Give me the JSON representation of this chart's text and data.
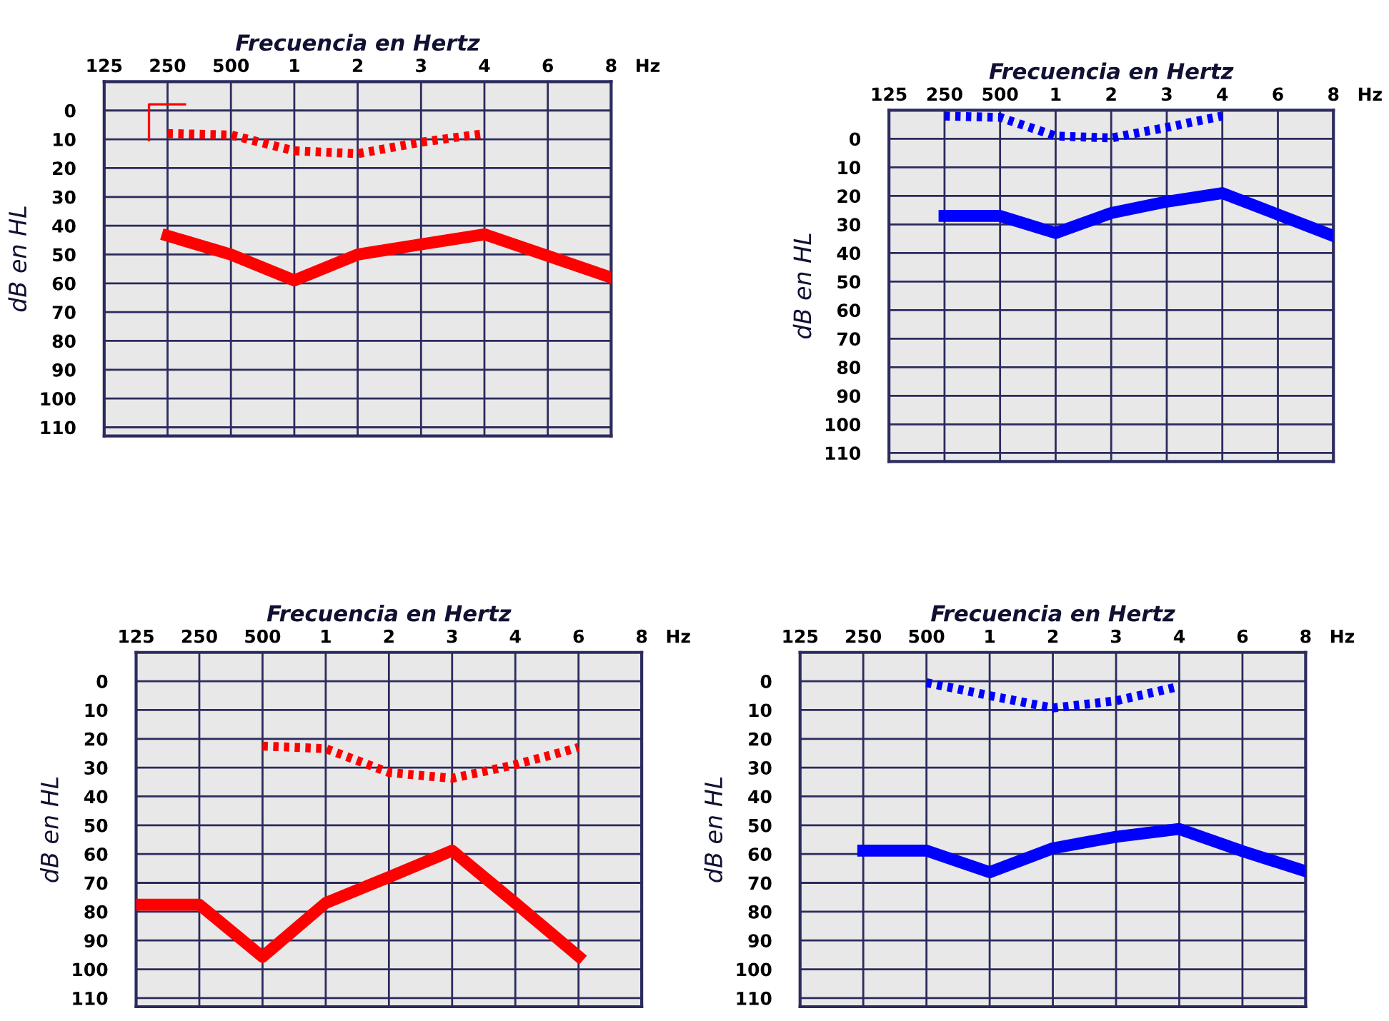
{
  "chart_data": [
    {
      "type": "line",
      "xlabel": "Frecuencia en Hertz",
      "ylabel": "dB en HL",
      "annotations": [
        "Hz"
      ],
      "ylim": [
        113,
        -10
      ],
      "categories": [
        "125",
        "250",
        "500",
        "1",
        "2",
        "3",
        "4",
        "6",
        "8"
      ],
      "yticks": [
        0,
        10,
        20,
        30,
        40,
        50,
        60,
        70,
        80,
        90,
        100,
        110
      ],
      "grid": true,
      "series": [
        {
          "color": "#ff0000",
          "line_style": "solid",
          "values": [
            null,
            43.5,
            50,
            59,
            50,
            46.5,
            43,
            50.5,
            58
          ]
        },
        {
          "color": "#ff0000",
          "line_style": "dotted",
          "values": [
            null,
            8,
            8.5,
            14,
            15,
            11,
            8,
            null,
            null
          ]
        },
        {
          "type": "scatter",
          "color": "#ff0000",
          "values": [
            null,
            4.3,
            null,
            null,
            null,
            null,
            null,
            null,
            null
          ]
        }
      ]
    },
    {
      "type": "line",
      "xlabel": "Frecuencia en Hertz",
      "ylabel": "dB en HL",
      "annotations": [
        "Hz"
      ],
      "ylim": [
        113,
        -10
      ],
      "categories": [
        "125",
        "250",
        "500",
        "1",
        "2",
        "3",
        "4",
        "6",
        "8"
      ],
      "yticks": [
        0,
        10,
        20,
        30,
        40,
        50,
        60,
        70,
        80,
        90,
        100,
        110
      ],
      "grid": true,
      "series": [
        {
          "color": "#0000ff",
          "line_style": "solid",
          "values": [
            null,
            27,
            27,
            33,
            26,
            22,
            19,
            26.5,
            34
          ]
        },
        {
          "color": "#0000ff",
          "line_style": "dotted",
          "values": [
            null,
            -8,
            -7.5,
            -1,
            -0.3,
            -4,
            -8,
            null,
            null
          ]
        }
      ]
    },
    {
      "type": "line",
      "xlabel": "Frecuencia en Hertz",
      "ylabel": "dB en HL",
      "annotations": [
        "Hz"
      ],
      "ylim": [
        113,
        -10
      ],
      "categories": [
        "125",
        "250",
        "500",
        "1",
        "2",
        "3",
        "4",
        "6",
        "8"
      ],
      "yticks": [
        0,
        10,
        20,
        30,
        40,
        50,
        60,
        70,
        80,
        90,
        100,
        110
      ],
      "grid": true,
      "series": [
        {
          "color": "#ff0000",
          "line_style": "solid",
          "values": [
            77.6,
            77.6,
            95.7,
            77,
            68,
            58.8,
            77,
            95.5,
            null
          ]
        },
        {
          "color": "#ff0000",
          "line_style": "dotted",
          "values": [
            null,
            null,
            22.5,
            23.4,
            31.7,
            33.7,
            29,
            23,
            null
          ]
        }
      ]
    },
    {
      "type": "line",
      "xlabel": "Frecuencia en Hertz",
      "ylabel": "dB en HL",
      "annotations": [
        "Hz"
      ],
      "ylim": [
        113,
        -10
      ],
      "categories": [
        "125",
        "250",
        "500",
        "1",
        "2",
        "3",
        "4",
        "6",
        "8"
      ],
      "yticks": [
        0,
        10,
        20,
        30,
        40,
        50,
        60,
        70,
        80,
        90,
        100,
        110
      ],
      "grid": true,
      "series": [
        {
          "color": "#0000ff",
          "line_style": "solid",
          "values": [
            null,
            58.8,
            58.8,
            66.3,
            58,
            54,
            51.3,
            59,
            66
          ]
        },
        {
          "color": "#0000ff",
          "line_style": "dotted",
          "values": [
            null,
            null,
            0.5,
            5,
            9.3,
            6.8,
            1.8,
            null,
            null
          ]
        }
      ]
    }
  ]
}
